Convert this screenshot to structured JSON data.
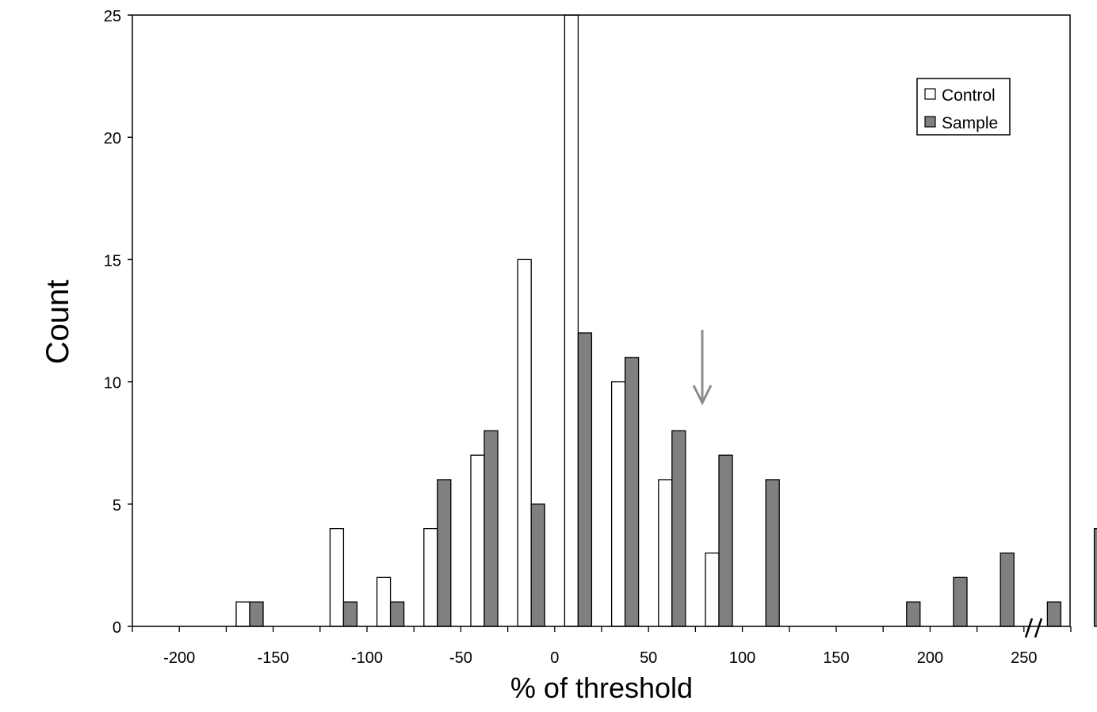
{
  "chart_data": {
    "type": "bar",
    "title": "",
    "xlabel": "% of threshold",
    "ylabel": "Count",
    "ylim": [
      0,
      25
    ],
    "y_ticks": [
      "0",
      "5",
      "10",
      "15",
      "20",
      "25"
    ],
    "x_tick_labels": [
      "-200",
      "-150",
      "-100",
      "-50",
      "0",
      "50",
      "100",
      "150",
      "200",
      "250"
    ],
    "categories": [
      "-212.5",
      "-187.5",
      "-162.5",
      "-137.5",
      "-112.5",
      "-87.5",
      "-62.5",
      "-37.5",
      "-12.5",
      "12.5",
      "37.5",
      "62.5",
      "87.5",
      "112.5",
      "137.5",
      "162.5",
      "187.5",
      "212.5",
      "237.5",
      "262.5",
      ">275"
    ],
    "series": [
      {
        "name": "Control",
        "color": "#ffffff",
        "values": [
          0,
          0,
          1,
          0,
          4,
          2,
          4,
          7,
          15,
          25,
          10,
          6,
          3,
          0,
          0,
          0,
          0,
          0,
          0,
          0,
          0
        ]
      },
      {
        "name": "Sample",
        "color": "#808080",
        "values": [
          0,
          0,
          1,
          0,
          1,
          1,
          6,
          8,
          5,
          12,
          11,
          8,
          7,
          6,
          0,
          0,
          1,
          2,
          3,
          1,
          4
        ]
      }
    ],
    "legend_position": "top-right",
    "annotations": [
      "arrow pointing down near 90% of threshold",
      "axis break marker before last bin"
    ],
    "grid": false
  }
}
